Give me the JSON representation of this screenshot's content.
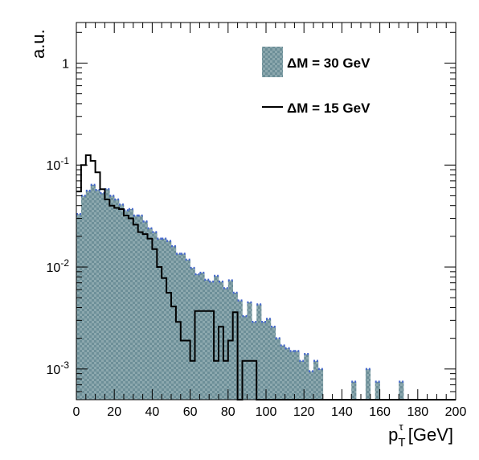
{
  "chart_data": {
    "type": "histogram",
    "x_axis": {
      "label_main": "p",
      "label_sub": "T",
      "label_sup": "τ",
      "label_unit": " [GeV]",
      "range": [
        0,
        200
      ],
      "major_ticks": [
        0,
        20,
        40,
        60,
        80,
        100,
        120,
        140,
        160,
        180,
        200
      ],
      "tick_labels": [
        "0",
        "20",
        "40",
        "60",
        "80",
        "100",
        "120",
        "140",
        "160",
        "180",
        "200"
      ]
    },
    "y_axis": {
      "label": "a.u.",
      "scale": "log",
      "range": [
        0.0005,
        2.5
      ],
      "major_ticks": [
        0.001,
        0.01,
        0.1,
        1
      ],
      "tick_labels": [
        {
          "base": "10",
          "exp": "-3"
        },
        {
          "base": "10",
          "exp": "-2"
        },
        {
          "base": "10",
          "exp": "-1"
        },
        {
          "base": "1",
          "exp": ""
        }
      ]
    },
    "bin_width": 2.5,
    "legend_position": "top-right",
    "series": [
      {
        "name": "ΔM = 30 GeV",
        "style": "filled-hatched",
        "fill_color": "#7fa0a8",
        "edge_color": "#4466cc",
        "values": [
          0.033,
          0.05,
          0.056,
          0.064,
          0.057,
          0.053,
          0.058,
          0.05,
          0.046,
          0.041,
          0.036,
          0.037,
          0.032,
          0.032,
          0.028,
          0.024,
          0.022,
          0.019,
          0.019,
          0.018,
          0.016,
          0.0135,
          0.0135,
          0.0118,
          0.0098,
          0.0085,
          0.0088,
          0.0075,
          0.0072,
          0.0082,
          0.0072,
          0.0062,
          0.0074,
          0.0056,
          0.0047,
          0.0033,
          0.0045,
          0.0029,
          0.0043,
          0.0029,
          0.0031,
          0.0026,
          0.002,
          0.0017,
          0.0016,
          0.0015,
          0.0015,
          0.0012,
          0.0014,
          0.00095,
          0.0012,
          0.001,
          0.0005,
          0.0005,
          0.0005,
          0.0005,
          0.0005,
          0.0005,
          0.00075,
          0.0005,
          0.0005,
          0.001,
          0.0005,
          0.00075,
          0.0005,
          0.0005,
          0.0005,
          0.0005,
          0.00075,
          0.0005,
          0.0005,
          0.0005,
          0.0005,
          0.0005,
          0.0005,
          0.0005,
          0.0005,
          0.0005,
          0.0005,
          0.0005
        ]
      },
      {
        "name": "ΔM = 15 GeV",
        "style": "line",
        "line_color": "#000000",
        "values": [
          0.055,
          0.1,
          0.125,
          0.11,
          0.085,
          0.058,
          0.046,
          0.04,
          0.038,
          0.037,
          0.032,
          0.03,
          0.026,
          0.022,
          0.021,
          0.019,
          0.015,
          0.01,
          0.0078,
          0.0056,
          0.0041,
          0.0029,
          0.0019,
          0.0019,
          0.0012,
          0.0037,
          0.0037,
          0.0037,
          0.0037,
          0.0012,
          0.0026,
          0.0012,
          0.0019,
          0.0036,
          0.0005,
          0.0012,
          0.0012,
          0.0012,
          0.0005,
          0.0005,
          0.0005,
          0.0005,
          0.0005,
          0.0005,
          0.0005,
          0.0005,
          0.0005,
          0.0005,
          0.0005,
          0.0005,
          0.0005,
          0.0005,
          0.0005,
          0.0005,
          0.0005,
          0.0005,
          0.0005,
          0.0005,
          0.0005,
          0.0005,
          0.0005,
          0.0005,
          0.0005,
          0.0005,
          0.0005,
          0.0005,
          0.0005,
          0.0005,
          0.0005,
          0.0005,
          0.0005,
          0.0005,
          0.0005,
          0.0005,
          0.0005,
          0.0005,
          0.0005,
          0.0005,
          0.0005,
          0.0005
        ]
      }
    ]
  }
}
